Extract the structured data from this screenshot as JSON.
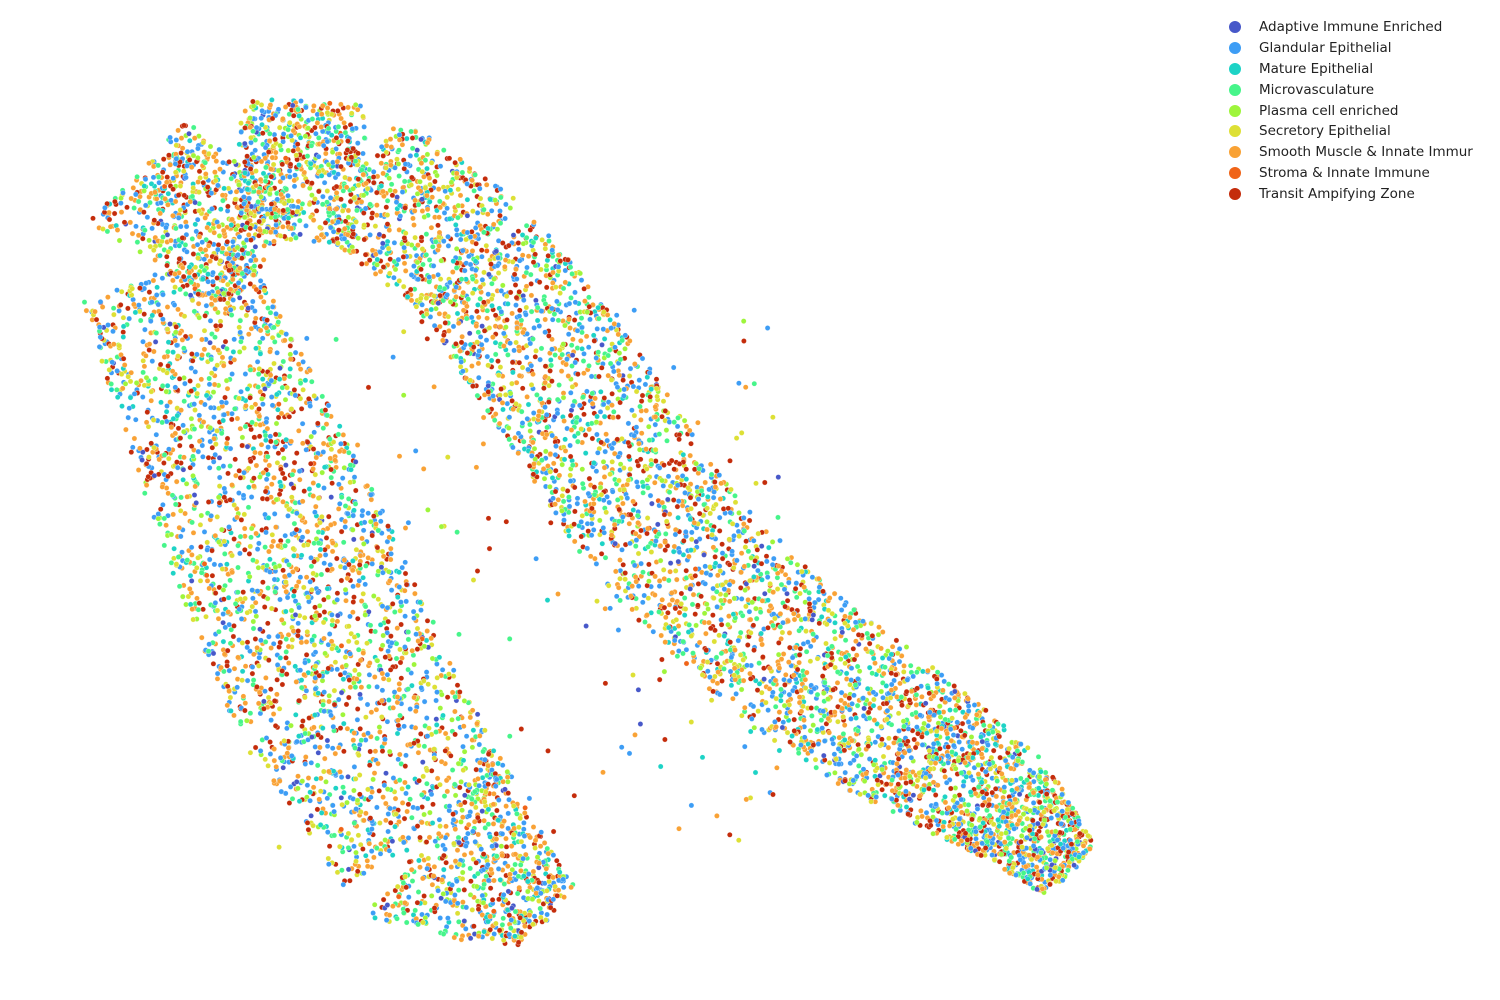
{
  "chart_data": {
    "type": "scatter",
    "title": "",
    "xlabel": "",
    "ylabel": "",
    "axes_visible": false,
    "grid": false,
    "legend_position": "top-right",
    "series": [
      {
        "name": "Adaptive Immune Enriched",
        "color": "#4758c9"
      },
      {
        "name": "Glandular Epithelial",
        "color": "#3d9df5"
      },
      {
        "name": "Mature Epithelial",
        "color": "#1dd3c6"
      },
      {
        "name": "Microvasculature",
        "color": "#46f58a"
      },
      {
        "name": "Plasma cell enriched",
        "color": "#9ef53b"
      },
      {
        "name": "Secretory Epithelial",
        "color": "#dde035"
      },
      {
        "name": "Smooth Muscle & Innate Immur",
        "color": "#f9a235"
      },
      {
        "name": "Stroma & Innate Immune",
        "color": "#f06418"
      },
      {
        "name": "Transit Ampifying Zone",
        "color": "#c42c0b"
      }
    ]
  }
}
